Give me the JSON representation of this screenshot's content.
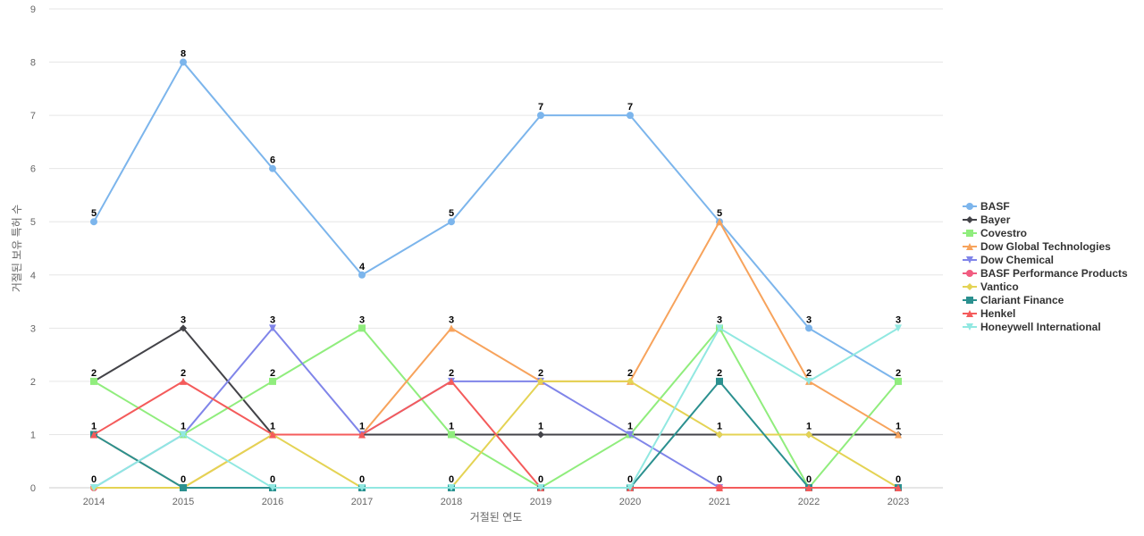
{
  "chart_data": {
    "type": "line",
    "title": "",
    "xlabel": "거절된 연도",
    "ylabel": "거절된 보유 특허 수",
    "ylim": [
      0,
      9
    ],
    "y_ticks": [
      0,
      1,
      2,
      3,
      4,
      5,
      6,
      7,
      8,
      9
    ],
    "grid": "horizontal",
    "legend_position": "right",
    "data_labels": "top value per year",
    "categories": [
      "2014",
      "2015",
      "2016",
      "2017",
      "2018",
      "2019",
      "2020",
      "2021",
      "2022",
      "2023"
    ],
    "series": [
      {
        "name": "BASF",
        "color": "#7cb5ec",
        "marker": "circle",
        "values": [
          5,
          8,
          6,
          4,
          5,
          7,
          7,
          5,
          3,
          2
        ]
      },
      {
        "name": "Bayer",
        "color": "#434348",
        "marker": "diamond",
        "values": [
          2,
          3,
          1,
          1,
          1,
          1,
          1,
          1,
          1,
          1
        ]
      },
      {
        "name": "Covestro",
        "color": "#90ed7d",
        "marker": "square",
        "values": [
          2,
          1,
          2,
          3,
          1,
          0,
          1,
          3,
          0,
          2
        ]
      },
      {
        "name": "Dow Global Technologies",
        "color": "#f7a35c",
        "marker": "triangle",
        "values": [
          1,
          0,
          1,
          1,
          3,
          2,
          2,
          5,
          2,
          1
        ]
      },
      {
        "name": "Dow Chemical",
        "color": "#8085e9",
        "marker": "triangle-down",
        "values": [
          0,
          1,
          3,
          1,
          2,
          2,
          1,
          0,
          0,
          0
        ]
      },
      {
        "name": "BASF Performance Products",
        "color": "#f15c80",
        "marker": "circle",
        "values": [
          0,
          0,
          0,
          0,
          0,
          0,
          0,
          0,
          0,
          0
        ]
      },
      {
        "name": "Vantico",
        "color": "#e4d354",
        "marker": "diamond",
        "values": [
          0,
          0,
          1,
          0,
          0,
          2,
          2,
          1,
          1,
          0
        ]
      },
      {
        "name": "Clariant Finance",
        "color": "#2b908f",
        "marker": "square",
        "values": [
          1,
          0,
          0,
          0,
          0,
          0,
          0,
          2,
          0,
          0
        ]
      },
      {
        "name": "Henkel",
        "color": "#f45b5b",
        "marker": "triangle",
        "values": [
          1,
          2,
          1,
          1,
          2,
          0,
          0,
          0,
          0,
          0
        ]
      },
      {
        "name": "Honeywell International",
        "color": "#91e8e1",
        "marker": "triangle-down",
        "values": [
          0,
          1,
          0,
          0,
          0,
          0,
          0,
          3,
          2,
          3
        ]
      }
    ]
  }
}
